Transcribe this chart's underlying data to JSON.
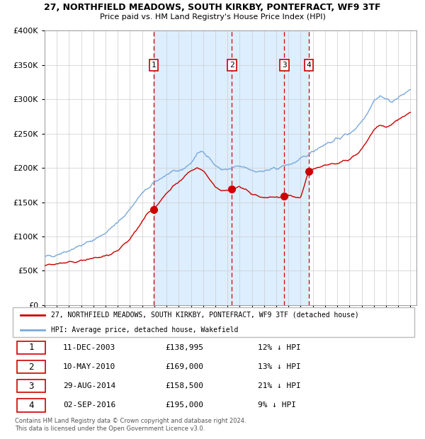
{
  "title1": "27, NORTHFIELD MEADOWS, SOUTH KIRKBY, PONTEFRACT, WF9 3TF",
  "title2": "Price paid vs. HM Land Registry's House Price Index (HPI)",
  "legend_line1": "27, NORTHFIELD MEADOWS, SOUTH KIRKBY, PONTEFRACT, WF9 3TF (detached house)",
  "legend_line2": "HPI: Average price, detached house, Wakefield",
  "footnote": "Contains HM Land Registry data © Crown copyright and database right 2024.\nThis data is licensed under the Open Government Licence v3.0.",
  "hpi_color": "#7aaadd",
  "price_color": "#cc0000",
  "shade_color": "#ddeeff",
  "dashed_color": "#cc0000",
  "sale_dates_dec": [
    2003.9417,
    2010.3583,
    2014.6583,
    2016.675
  ],
  "sale_prices": [
    138995,
    169000,
    158500,
    195000
  ],
  "sale_labels": [
    "1",
    "2",
    "3",
    "4"
  ],
  "table_rows": [
    [
      "1",
      "11-DEC-2003",
      "£138,995",
      "12% ↓ HPI"
    ],
    [
      "2",
      "10-MAY-2010",
      "£169,000",
      "13% ↓ HPI"
    ],
    [
      "3",
      "29-AUG-2014",
      "£158,500",
      "21% ↓ HPI"
    ],
    [
      "4",
      "02-SEP-2016",
      "£195,000",
      "9% ↓ HPI"
    ]
  ],
  "ylim": [
    0,
    400000
  ],
  "yticks": [
    0,
    50000,
    100000,
    150000,
    200000,
    250000,
    300000,
    350000,
    400000
  ],
  "xlim_start": 1995.0,
  "xlim_end": 2025.5,
  "hpi_waypoints_x": [
    1995.0,
    1995.5,
    1996.0,
    1996.5,
    1997.0,
    1997.5,
    1998.0,
    1998.5,
    1999.0,
    1999.5,
    2000.0,
    2000.5,
    2001.0,
    2001.5,
    2002.0,
    2002.5,
    2003.0,
    2003.5,
    2004.0,
    2004.5,
    2005.0,
    2005.5,
    2006.0,
    2006.5,
    2007.0,
    2007.5,
    2008.0,
    2008.5,
    2009.0,
    2009.5,
    2010.0,
    2010.5,
    2011.0,
    2011.5,
    2012.0,
    2012.5,
    2013.0,
    2013.5,
    2014.0,
    2014.5,
    2015.0,
    2015.5,
    2016.0,
    2016.5,
    2017.0,
    2017.5,
    2018.0,
    2018.5,
    2019.0,
    2019.5,
    2020.0,
    2020.5,
    2021.0,
    2021.5,
    2022.0,
    2022.5,
    2023.0,
    2023.5,
    2024.0,
    2024.5,
    2025.0
  ],
  "hpi_waypoints_y": [
    70000,
    72000,
    74000,
    77000,
    80000,
    84000,
    87000,
    91000,
    95000,
    100000,
    106000,
    113000,
    120000,
    130000,
    140000,
    152000,
    163000,
    170000,
    178000,
    185000,
    190000,
    193000,
    196000,
    200000,
    207000,
    220000,
    225000,
    215000,
    203000,
    198000,
    197000,
    200000,
    202000,
    200000,
    197000,
    195000,
    195000,
    197000,
    199000,
    202000,
    205000,
    208000,
    212000,
    218000,
    225000,
    230000,
    235000,
    238000,
    242000,
    247000,
    250000,
    258000,
    268000,
    282000,
    298000,
    305000,
    300000,
    297000,
    302000,
    308000,
    315000
  ],
  "price_waypoints_x": [
    1995.0,
    1995.5,
    1996.0,
    1996.5,
    1997.0,
    1997.5,
    1998.0,
    1998.5,
    1999.0,
    1999.5,
    2000.0,
    2000.5,
    2001.0,
    2001.5,
    2002.0,
    2002.5,
    2003.0,
    2003.42,
    2003.94,
    2004.5,
    2005.0,
    2005.5,
    2006.0,
    2006.5,
    2007.0,
    2007.5,
    2008.0,
    2008.5,
    2009.0,
    2009.5,
    2010.0,
    2010.36,
    2010.8,
    2011.0,
    2011.5,
    2012.0,
    2012.5,
    2013.0,
    2013.5,
    2014.0,
    2014.66,
    2015.0,
    2015.5,
    2016.0,
    2016.67,
    2017.0,
    2017.5,
    2018.0,
    2018.5,
    2019.0,
    2019.5,
    2020.0,
    2020.5,
    2021.0,
    2021.5,
    2022.0,
    2022.5,
    2023.0,
    2023.5,
    2024.0,
    2024.5,
    2025.0
  ],
  "price_waypoints_y": [
    58000,
    59000,
    60000,
    61000,
    62000,
    63000,
    65000,
    67000,
    68000,
    70000,
    72000,
    76000,
    80000,
    88000,
    97000,
    108000,
    122000,
    132000,
    138995,
    152000,
    163000,
    172000,
    180000,
    188000,
    195000,
    200000,
    197000,
    185000,
    172000,
    168000,
    167000,
    169000,
    172000,
    173000,
    168000,
    162000,
    158000,
    157000,
    157000,
    158000,
    158500,
    160000,
    158000,
    157000,
    195000,
    198000,
    200000,
    203000,
    205000,
    207000,
    210000,
    212000,
    218000,
    228000,
    240000,
    255000,
    262000,
    260000,
    265000,
    270000,
    275000,
    280000
  ]
}
